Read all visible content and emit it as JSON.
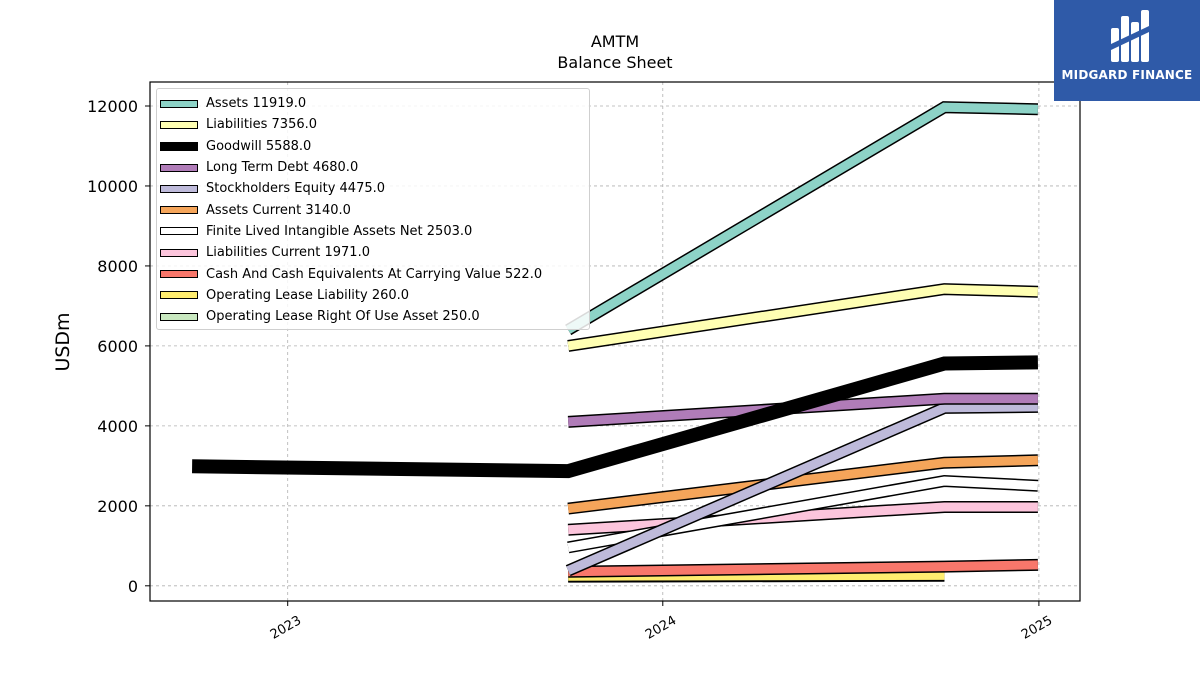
{
  "chart_data": {
    "type": "line",
    "title": "AMTM",
    "subtitle": "Balance  Sheet",
    "ylabel": "USDm",
    "xlabel": "",
    "x_ticks": [
      "2023",
      "2024",
      "2025"
    ],
    "y_ticks": [
      "0",
      "2000",
      "4000",
      "6000",
      "8000",
      "10000",
      "12000"
    ],
    "xlim": [
      "2022-08-20",
      "2025-02-10"
    ],
    "ylim": [
      -380,
      12600
    ],
    "grid": true,
    "legend_position": "top-left",
    "series": [
      {
        "name": "Assets",
        "legend": "Assets  11919.0",
        "color": "#8dd3c7",
        "x": [
          "2023-10-01",
          "2024-10-01",
          "2024-12-31"
        ],
        "y": [
          6400,
          11970,
          11919
        ]
      },
      {
        "name": "Liabilities",
        "legend": "Liabilities  7356.0",
        "color": "#ffffb3",
        "x": [
          "2023-10-01",
          "2024-10-01",
          "2024-12-31"
        ],
        "y": [
          6000,
          7420,
          7356
        ]
      },
      {
        "name": "Goodwill",
        "legend": "Goodwill  5588.0",
        "color": "#000000",
        "x": [
          "2022-09-30",
          "2023-10-01",
          "2024-10-01",
          "2024-12-31"
        ],
        "y": [
          2990,
          2870,
          5560,
          5588
        ]
      },
      {
        "name": "Long Term Debt",
        "legend": "Long Term Debt  4680.0",
        "color": "#b07cb8",
        "x": [
          "2023-10-01",
          "2024-10-01",
          "2024-12-31"
        ],
        "y": [
          4100,
          4680,
          4680
        ]
      },
      {
        "name": "Stockholders Equity",
        "legend": "Stockholders Equity  4475.0",
        "color": "#bebada",
        "x": [
          "2023-10-01",
          "2024-10-01",
          "2024-12-31"
        ],
        "y": [
          380,
          4450,
          4475
        ]
      },
      {
        "name": "Assets Current",
        "legend": "Assets Current  3140.0",
        "color": "#f5a55a",
        "x": [
          "2023-10-01",
          "2024-10-01",
          "2024-12-31"
        ],
        "y": [
          1930,
          3080,
          3140
        ]
      },
      {
        "name": "Finite Lived Intangible Assets Net",
        "legend": "Finite Lived Intangible Assets Net  2503.0",
        "color": "#ffffff",
        "x": [
          "2023-10-01",
          "2024-10-01",
          "2024-12-31"
        ],
        "y": [
          960,
          2620,
          2503
        ]
      },
      {
        "name": "Liabilities Current",
        "legend": "Liabilities Current  1971.0",
        "color": "#fcc5dc",
        "x": [
          "2023-10-01",
          "2024-10-01",
          "2024-12-31"
        ],
        "y": [
          1400,
          1971,
          1971
        ]
      },
      {
        "name": "Cash And Cash Equivalents At Carrying Value",
        "legend": "Cash And Cash Equivalents At Carrying Value  522.0",
        "color": "#f8776b",
        "x": [
          "2023-10-01",
          "2024-10-01",
          "2024-12-31"
        ],
        "y": [
          350,
          480,
          522
        ]
      },
      {
        "name": "Operating Lease Liability",
        "legend": "Operating Lease Liability  260.0",
        "color": "#ffed6f",
        "x": [
          "2023-10-01",
          "2024-10-01"
        ],
        "y": [
          240,
          260
        ]
      },
      {
        "name": "Operating Lease Right Of Use Asset",
        "legend": "Operating Lease Right Of Use Asset  250.0",
        "color": "#c9e8c0",
        "x": [
          "2023-10-01",
          "2024-10-01"
        ],
        "y": [
          230,
          250
        ]
      }
    ]
  },
  "logo": {
    "text": "MIDGARD FINANCE"
  }
}
